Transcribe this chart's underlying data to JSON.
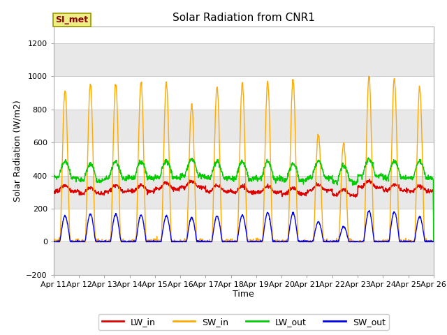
{
  "title": "Solar Radiation from CNR1",
  "xlabel": "Time",
  "ylabel": "Solar Radiation (W/m2)",
  "ylim": [
    -200,
    1300
  ],
  "yticks": [
    -200,
    0,
    200,
    400,
    600,
    800,
    1000,
    1200
  ],
  "date_labels": [
    "Apr 11",
    "Apr 12",
    "Apr 13",
    "Apr 14",
    "Apr 15",
    "Apr 16",
    "Apr 17",
    "Apr 18",
    "Apr 19",
    "Apr 20",
    "Apr 21",
    "Apr 22",
    "Apr 23",
    "Apr 24",
    "Apr 25",
    "Apr 26"
  ],
  "colors": {
    "LW_in": "#dd0000",
    "SW_in": "#ffaa00",
    "LW_out": "#00cc00",
    "SW_out": "#0000ee"
  },
  "legend_label": "SI_met",
  "legend_box_facecolor": "#eeee88",
  "legend_box_edgecolor": "#999900",
  "legend_text_color": "#880000",
  "background_color": "#ffffff",
  "plot_bg_color": "#ffffff",
  "band_colors": [
    "#e8e8e8",
    "#ffffff"
  ],
  "grid_color": "#cccccc",
  "lw": 1.0,
  "n_days": 15,
  "n_per_day": 96,
  "SW_in_peaks": [
    920,
    950,
    960,
    965,
    960,
    830,
    940,
    960,
    965,
    980,
    650,
    600,
    1000,
    980,
    935
  ],
  "SW_out_peaks": [
    155,
    165,
    165,
    160,
    155,
    145,
    155,
    160,
    175,
    175,
    120,
    90,
    185,
    180,
    150
  ],
  "LW_in_base": 300,
  "LW_in_day_offsets": [
    5,
    -10,
    5,
    5,
    20,
    30,
    5,
    0,
    0,
    -10,
    10,
    -20,
    30,
    10,
    5
  ],
  "LW_out_base": 380,
  "LW_out_day_offsets": [
    5,
    -10,
    5,
    5,
    10,
    20,
    5,
    0,
    0,
    -10,
    5,
    -20,
    20,
    5,
    5
  ]
}
